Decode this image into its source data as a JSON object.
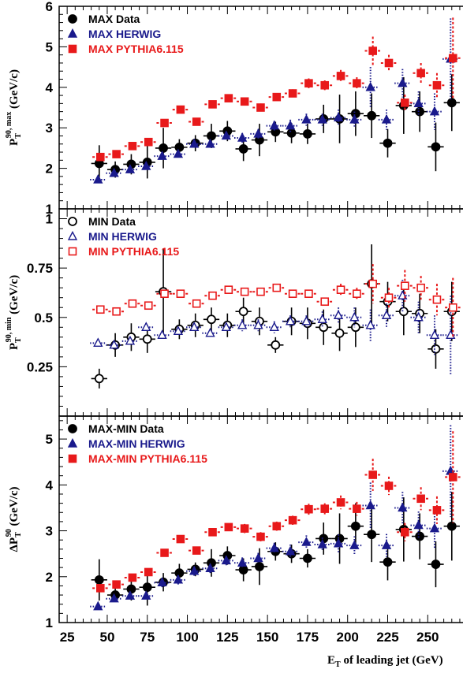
{
  "colors": {
    "data": "#000000",
    "herwig": "#1a1a8c",
    "pythia": "#e8191a"
  },
  "xaxis": {
    "label_main": "E",
    "label_sub": "T",
    "label_rest": " of leading jet (GeV)",
    "xlim": [
      20,
      272
    ],
    "ticks": [
      "25",
      "50",
      "75",
      "100",
      "125",
      "150",
      "175",
      "200",
      "225",
      "250"
    ]
  },
  "chart_data": [
    {
      "type": "scatter",
      "ylabel": {
        "main": "P",
        "sub": "T",
        "sup": "90, max",
        "unit": "(GeV/c)"
      },
      "ylim": [
        1,
        6
      ],
      "yticks": [
        "1",
        "2",
        "3",
        "4",
        "5",
        "6"
      ],
      "legend_position": "top-left",
      "x": [
        45,
        55,
        65,
        75,
        85,
        95,
        105,
        115,
        125,
        135,
        145,
        155,
        165,
        175,
        185,
        195,
        205,
        215,
        225,
        235,
        245,
        255,
        265
      ],
      "series": [
        {
          "name": "MAX Data",
          "marker": "filled-circle",
          "values": [
            2.12,
            1.97,
            2.1,
            2.15,
            2.5,
            2.52,
            2.62,
            2.8,
            2.92,
            2.48,
            2.7,
            2.9,
            2.87,
            2.85,
            3.22,
            3.22,
            3.35,
            3.3,
            2.62,
            3.55,
            3.4,
            2.53,
            3.62
          ],
          "errors": [
            0.45,
            0.2,
            0.25,
            0.4,
            0.5,
            0.2,
            0.2,
            0.3,
            0.25,
            0.3,
            0.4,
            0.25,
            0.25,
            0.25,
            0.35,
            0.6,
            0.55,
            0.55,
            0.35,
            0.7,
            0.5,
            0.6,
            0.7
          ]
        },
        {
          "name": "MAX HERWIG",
          "marker": "filled-triangle",
          "values": [
            1.72,
            1.88,
            1.97,
            2.05,
            2.3,
            2.35,
            2.6,
            2.6,
            2.8,
            2.75,
            2.85,
            3.05,
            3.05,
            3.2,
            3.2,
            3.25,
            3.2,
            4.0,
            3.2,
            4.1,
            3.6,
            3.4,
            4.7
          ],
          "errors": [
            0.08,
            0.08,
            0.08,
            0.08,
            0.1,
            0.1,
            0.1,
            0.1,
            0.1,
            0.12,
            0.12,
            0.12,
            0.15,
            0.15,
            0.15,
            0.2,
            0.2,
            0.5,
            0.25,
            0.35,
            0.3,
            0.45,
            1.0
          ]
        },
        {
          "name": "MAX PYTHIA6.115",
          "marker": "filled-square",
          "values": [
            2.28,
            2.35,
            2.55,
            2.65,
            3.12,
            3.45,
            3.15,
            3.58,
            3.73,
            3.65,
            3.5,
            3.76,
            3.85,
            4.1,
            4.05,
            4.28,
            4.1,
            4.9,
            4.6,
            3.62,
            4.35,
            4.05,
            4.72
          ],
          "errors": [
            0.05,
            0.05,
            0.06,
            0.06,
            0.08,
            0.08,
            0.08,
            0.08,
            0.08,
            0.1,
            0.1,
            0.1,
            0.1,
            0.12,
            0.12,
            0.15,
            0.15,
            0.35,
            0.2,
            0.2,
            0.25,
            0.3,
            1.0
          ]
        }
      ]
    },
    {
      "type": "scatter",
      "ylabel": {
        "main": "P",
        "sub": "T",
        "sup": "90, min",
        "unit": "(GeV/c)"
      },
      "ylim": [
        0,
        1.05
      ],
      "yticks": [
        "0.25",
        "0.5",
        "0.75",
        "1"
      ],
      "legend_position": "top-left",
      "x": [
        45,
        55,
        65,
        75,
        85,
        95,
        105,
        115,
        125,
        135,
        145,
        155,
        165,
        175,
        185,
        195,
        205,
        215,
        225,
        235,
        245,
        255,
        265
      ],
      "series": [
        {
          "name": "MIN Data",
          "marker": "open-circle",
          "values": [
            0.19,
            0.36,
            0.4,
            0.39,
            0.63,
            0.44,
            0.46,
            0.49,
            0.46,
            0.53,
            0.48,
            0.36,
            0.48,
            0.47,
            0.45,
            0.42,
            0.45,
            0.67,
            0.58,
            0.53,
            0.52,
            0.34,
            0.53
          ],
          "errors": [
            0.05,
            0.06,
            0.07,
            0.07,
            0.22,
            0.05,
            0.06,
            0.06,
            0.06,
            0.07,
            0.07,
            0.04,
            0.07,
            0.08,
            0.09,
            0.09,
            0.1,
            0.2,
            0.1,
            0.12,
            0.1,
            0.1,
            0.15
          ]
        },
        {
          "name": "MIN HERWIG",
          "marker": "open-triangle",
          "values": [
            0.37,
            0.36,
            0.38,
            0.45,
            0.41,
            0.43,
            0.45,
            0.42,
            0.45,
            0.46,
            0.46,
            0.45,
            0.48,
            0.48,
            0.49,
            0.51,
            0.5,
            0.46,
            0.51,
            0.61,
            0.5,
            0.41,
            0.41
          ],
          "errors": [
            0.02,
            0.02,
            0.02,
            0.02,
            0.02,
            0.02,
            0.02,
            0.02,
            0.02,
            0.03,
            0.03,
            0.03,
            0.03,
            0.03,
            0.04,
            0.04,
            0.05,
            0.08,
            0.06,
            0.08,
            0.08,
            0.1,
            0.2
          ]
        },
        {
          "name": "MIN PYTHIA6.115",
          "marker": "open-square",
          "values": [
            0.54,
            0.53,
            0.57,
            0.56,
            0.62,
            0.62,
            0.57,
            0.61,
            0.64,
            0.63,
            0.63,
            0.65,
            0.62,
            0.62,
            0.58,
            0.64,
            0.62,
            0.67,
            0.6,
            0.66,
            0.65,
            0.59,
            0.55
          ],
          "errors": [
            0.01,
            0.01,
            0.01,
            0.01,
            0.02,
            0.02,
            0.02,
            0.02,
            0.02,
            0.02,
            0.02,
            0.02,
            0.02,
            0.02,
            0.02,
            0.03,
            0.03,
            0.1,
            0.05,
            0.08,
            0.06,
            0.08,
            0.15
          ]
        }
      ]
    },
    {
      "type": "scatter",
      "ylabel": {
        "main": "ΔP",
        "sub": "T",
        "sup": "90",
        "unit": "(GeV/c)"
      },
      "ylim": [
        1,
        5.5
      ],
      "yticks": [
        "1",
        "2",
        "3",
        "4",
        "5"
      ],
      "legend_position": "top-left",
      "x": [
        45,
        55,
        65,
        75,
        85,
        95,
        105,
        115,
        125,
        135,
        145,
        155,
        165,
        175,
        185,
        195,
        205,
        215,
        225,
        235,
        245,
        255,
        265
      ],
      "series": [
        {
          "name": "MAX-MIN Data",
          "marker": "filled-circle",
          "values": [
            1.93,
            1.6,
            1.73,
            1.77,
            1.88,
            2.08,
            2.16,
            2.3,
            2.46,
            2.15,
            2.22,
            2.55,
            2.5,
            2.4,
            2.83,
            2.83,
            3.1,
            2.92,
            2.32,
            3.03,
            2.88,
            2.27,
            3.1
          ],
          "errors": [
            0.45,
            0.15,
            0.25,
            0.4,
            0.2,
            0.2,
            0.15,
            0.3,
            0.2,
            0.25,
            0.4,
            0.2,
            0.2,
            0.2,
            0.35,
            0.55,
            0.5,
            0.6,
            0.4,
            0.7,
            0.5,
            0.5,
            0.75
          ]
        },
        {
          "name": "MAX-MIN HERWIG",
          "marker": "filled-triangle",
          "values": [
            1.35,
            1.52,
            1.58,
            1.58,
            1.87,
            1.93,
            2.12,
            2.18,
            2.35,
            2.3,
            2.4,
            2.62,
            2.55,
            2.75,
            2.7,
            2.72,
            2.68,
            3.55,
            2.68,
            3.5,
            3.12,
            3.05,
            4.3
          ],
          "errors": [
            0.08,
            0.08,
            0.08,
            0.08,
            0.1,
            0.1,
            0.1,
            0.1,
            0.1,
            0.12,
            0.12,
            0.12,
            0.15,
            0.15,
            0.15,
            0.2,
            0.2,
            0.5,
            0.25,
            0.35,
            0.3,
            0.45,
            1.0
          ]
        },
        {
          "name": "MAX-MIN PYTHIA6.115",
          "marker": "filled-square",
          "values": [
            1.75,
            1.83,
            1.98,
            2.1,
            2.52,
            2.82,
            2.57,
            2.97,
            3.08,
            3.05,
            2.87,
            3.1,
            3.23,
            3.47,
            3.48,
            3.62,
            3.48,
            4.22,
            3.98,
            2.97,
            3.7,
            3.45,
            4.17
          ],
          "errors": [
            0.05,
            0.05,
            0.06,
            0.06,
            0.08,
            0.08,
            0.08,
            0.08,
            0.08,
            0.1,
            0.1,
            0.1,
            0.1,
            0.12,
            0.12,
            0.15,
            0.15,
            0.35,
            0.2,
            0.2,
            0.25,
            0.3,
            1.0
          ]
        }
      ]
    }
  ]
}
